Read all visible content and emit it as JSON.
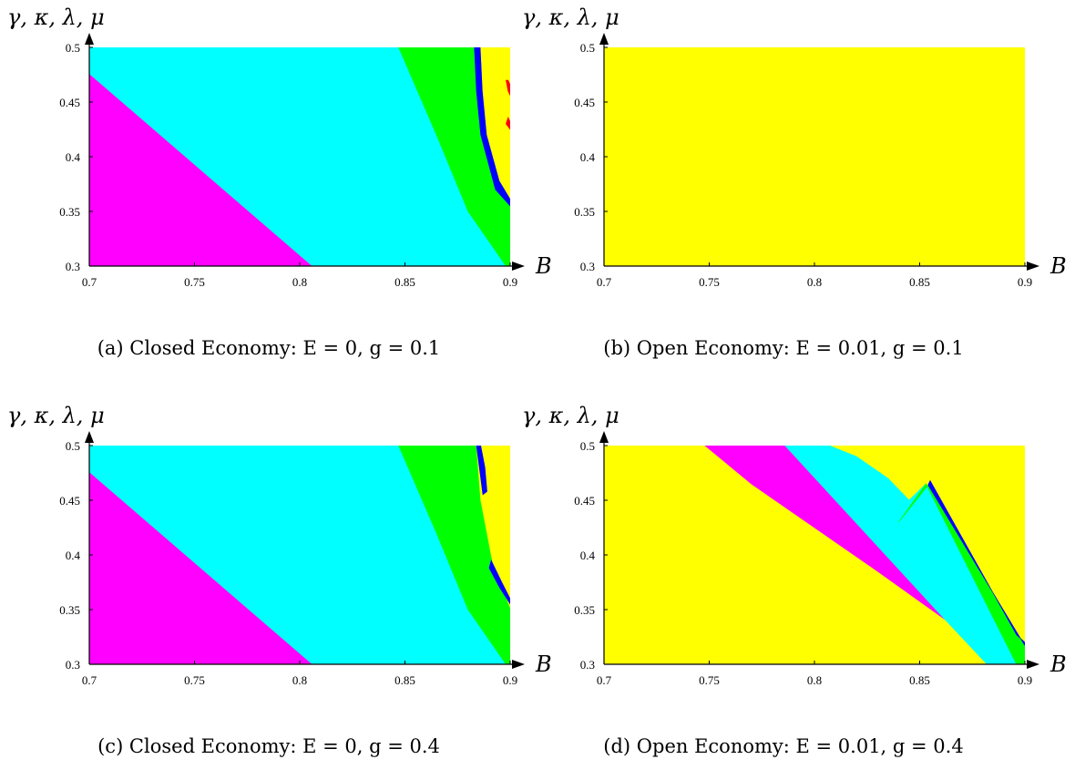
{
  "colors": {
    "yellow": "#ffff00",
    "cyan": "#00ffff",
    "magenta": "#ff00ff",
    "green": "#00ff00",
    "blue": "#0000ff",
    "red": "#ff0000",
    "axis": "#000000"
  },
  "panels": [
    {
      "caption": "(a) Closed Economy: E = 0, g = 0.1",
      "ylabel": "γ, κ, λ, μ",
      "xlabel": "B",
      "xticks": [
        "0.7",
        "0.75",
        "0.8",
        "0.85",
        "0.9"
      ],
      "yticks": [
        "0.3",
        "0.35",
        "0.4",
        "0.45",
        "0.5"
      ]
    },
    {
      "caption": "(b) Open Economy: E = 0.01, g = 0.1",
      "ylabel": "γ, κ, λ, μ",
      "xlabel": "B",
      "xticks": [
        "0.7",
        "0.75",
        "0.8",
        "0.85",
        "0.9"
      ],
      "yticks": [
        "0.3",
        "0.35",
        "0.4",
        "0.45",
        "0.5"
      ]
    },
    {
      "caption": "(c) Closed Economy: E = 0, g = 0.4",
      "ylabel": "γ, κ, λ, μ",
      "xlabel": "B",
      "xticks": [
        "0.7",
        "0.75",
        "0.8",
        "0.85",
        "0.9"
      ],
      "yticks": [
        "0.3",
        "0.35",
        "0.4",
        "0.45",
        "0.5"
      ]
    },
    {
      "caption": "(d) Open Economy: E = 0.01, g = 0.4",
      "ylabel": "γ, κ, λ, μ",
      "xlabel": "B",
      "xticks": [
        "0.7",
        "0.75",
        "0.8",
        "0.85",
        "0.9"
      ],
      "yticks": [
        "0.3",
        "0.35",
        "0.4",
        "0.45",
        "0.5"
      ]
    }
  ],
  "chart_data": [
    {
      "type": "heatmap",
      "xlabel": "B",
      "ylabel": "γ, κ, λ, μ",
      "xlim": [
        0.7,
        0.9
      ],
      "ylim": [
        0.3,
        0.5
      ],
      "regions": [
        {
          "color": "#ff00ff",
          "polygon": [
            [
              0.7,
              0.3
            ],
            [
              0.806,
              0.3
            ],
            [
              0.7,
              0.476
            ]
          ]
        },
        {
          "color": "#00ffff",
          "polygon": [
            [
              0.7,
              0.476
            ],
            [
              0.806,
              0.3
            ],
            [
              0.898,
              0.3
            ],
            [
              0.88,
              0.35
            ],
            [
              0.865,
              0.42
            ],
            [
              0.847,
              0.5
            ],
            [
              0.7,
              0.5
            ]
          ]
        },
        {
          "color": "#00ff00",
          "polygon": [
            [
              0.847,
              0.5
            ],
            [
              0.865,
              0.42
            ],
            [
              0.88,
              0.35
            ],
            [
              0.898,
              0.3
            ],
            [
              0.9,
              0.3
            ],
            [
              0.9,
              0.355
            ],
            [
              0.893,
              0.37
            ],
            [
              0.886,
              0.42
            ],
            [
              0.884,
              0.46
            ],
            [
              0.883,
              0.5
            ]
          ]
        },
        {
          "color": "#0000ff",
          "polygon": [
            [
              0.883,
              0.5
            ],
            [
              0.884,
              0.46
            ],
            [
              0.886,
              0.42
            ],
            [
              0.893,
              0.37
            ],
            [
              0.9,
              0.355
            ],
            [
              0.9,
              0.362
            ],
            [
              0.895,
              0.378
            ],
            [
              0.889,
              0.42
            ],
            [
              0.887,
              0.46
            ],
            [
              0.886,
              0.5
            ]
          ]
        },
        {
          "color": "#ffff00",
          "polygon": [
            [
              0.886,
              0.5
            ],
            [
              0.887,
              0.46
            ],
            [
              0.889,
              0.42
            ],
            [
              0.895,
              0.378
            ],
            [
              0.9,
              0.362
            ],
            [
              0.9,
              0.5
            ]
          ]
        },
        {
          "color": "#ff0000",
          "polygon": [
            [
              0.898,
              0.47
            ],
            [
              0.899,
              0.46
            ],
            [
              0.9,
              0.456
            ],
            [
              0.9,
              0.466
            ],
            [
              0.899,
              0.47
            ]
          ]
        },
        {
          "color": "#ff0000",
          "polygon": [
            [
              0.898,
              0.43
            ],
            [
              0.9,
              0.425
            ],
            [
              0.9,
              0.432
            ],
            [
              0.899,
              0.436
            ]
          ]
        }
      ]
    },
    {
      "type": "heatmap",
      "xlabel": "B",
      "ylabel": "γ, κ, λ, μ",
      "xlim": [
        0.7,
        0.9
      ],
      "ylim": [
        0.3,
        0.5
      ],
      "regions": [
        {
          "color": "#ffff00",
          "polygon": [
            [
              0.7,
              0.3
            ],
            [
              0.9,
              0.3
            ],
            [
              0.9,
              0.5
            ],
            [
              0.7,
              0.5
            ]
          ]
        }
      ]
    },
    {
      "type": "heatmap",
      "xlabel": "B",
      "ylabel": "γ, κ, λ, μ",
      "xlim": [
        0.7,
        0.9
      ],
      "ylim": [
        0.3,
        0.5
      ],
      "regions": [
        {
          "color": "#ff00ff",
          "polygon": [
            [
              0.7,
              0.3
            ],
            [
              0.806,
              0.3
            ],
            [
              0.7,
              0.476
            ]
          ]
        },
        {
          "color": "#00ffff",
          "polygon": [
            [
              0.7,
              0.476
            ],
            [
              0.806,
              0.3
            ],
            [
              0.898,
              0.3
            ],
            [
              0.88,
              0.35
            ],
            [
              0.865,
              0.42
            ],
            [
              0.847,
              0.5
            ],
            [
              0.7,
              0.5
            ]
          ]
        },
        {
          "color": "#00ff00",
          "polygon": [
            [
              0.847,
              0.5
            ],
            [
              0.865,
              0.42
            ],
            [
              0.88,
              0.35
            ],
            [
              0.898,
              0.3
            ],
            [
              0.9,
              0.3
            ],
            [
              0.9,
              0.352
            ],
            [
              0.892,
              0.39
            ],
            [
              0.886,
              0.45
            ],
            [
              0.884,
              0.5
            ]
          ]
        },
        {
          "color": "#ffff00",
          "polygon": [
            [
              0.884,
              0.5
            ],
            [
              0.886,
              0.45
            ],
            [
              0.892,
              0.39
            ],
            [
              0.9,
              0.352
            ],
            [
              0.9,
              0.5
            ]
          ]
        },
        {
          "color": "#0000ff",
          "polygon": [
            [
              0.884,
              0.5
            ],
            [
              0.886,
              0.47
            ],
            [
              0.887,
              0.455
            ],
            [
              0.889,
              0.458
            ],
            [
              0.888,
              0.48
            ],
            [
              0.886,
              0.5
            ]
          ]
        },
        {
          "color": "#0000ff",
          "polygon": [
            [
              0.891,
              0.395
            ],
            [
              0.896,
              0.375
            ],
            [
              0.9,
              0.36
            ],
            [
              0.9,
              0.355
            ],
            [
              0.895,
              0.37
            ],
            [
              0.89,
              0.388
            ]
          ]
        }
      ]
    },
    {
      "type": "heatmap",
      "xlabel": "B",
      "ylabel": "γ, κ, λ, μ",
      "xlim": [
        0.7,
        0.9
      ],
      "ylim": [
        0.3,
        0.5
      ],
      "regions": [
        {
          "color": "#ffff00",
          "polygon": [
            [
              0.7,
              0.3
            ],
            [
              0.9,
              0.3
            ],
            [
              0.9,
              0.5
            ],
            [
              0.7,
              0.5
            ]
          ]
        },
        {
          "color": "#ff00ff",
          "polygon": [
            [
              0.748,
              0.5
            ],
            [
              0.77,
              0.465
            ],
            [
              0.8,
              0.425
            ],
            [
              0.83,
              0.385
            ],
            [
              0.862,
              0.341
            ],
            [
              0.786,
              0.5
            ]
          ]
        },
        {
          "color": "#00ffff",
          "polygon": [
            [
              0.786,
              0.5
            ],
            [
              0.862,
              0.341
            ],
            [
              0.882,
              0.3
            ],
            [
              0.896,
              0.3
            ],
            [
              0.853,
              0.465
            ],
            [
              0.845,
              0.45
            ],
            [
              0.835,
              0.47
            ],
            [
              0.82,
              0.49
            ],
            [
              0.807,
              0.5
            ]
          ]
        },
        {
          "color": "#00ff00",
          "polygon": [
            [
              0.896,
              0.3
            ],
            [
              0.9,
              0.3
            ],
            [
              0.9,
              0.32
            ],
            [
              0.896,
              0.327
            ],
            [
              0.855,
              0.466
            ],
            [
              0.84,
              0.43
            ],
            [
              0.853,
              0.465
            ]
          ]
        },
        {
          "color": "#0000ff",
          "polygon": [
            [
              0.896,
              0.327
            ],
            [
              0.9,
              0.32
            ],
            [
              0.9,
              0.317
            ],
            [
              0.854,
              0.464
            ],
            [
              0.855,
              0.468
            ]
          ]
        }
      ]
    }
  ]
}
